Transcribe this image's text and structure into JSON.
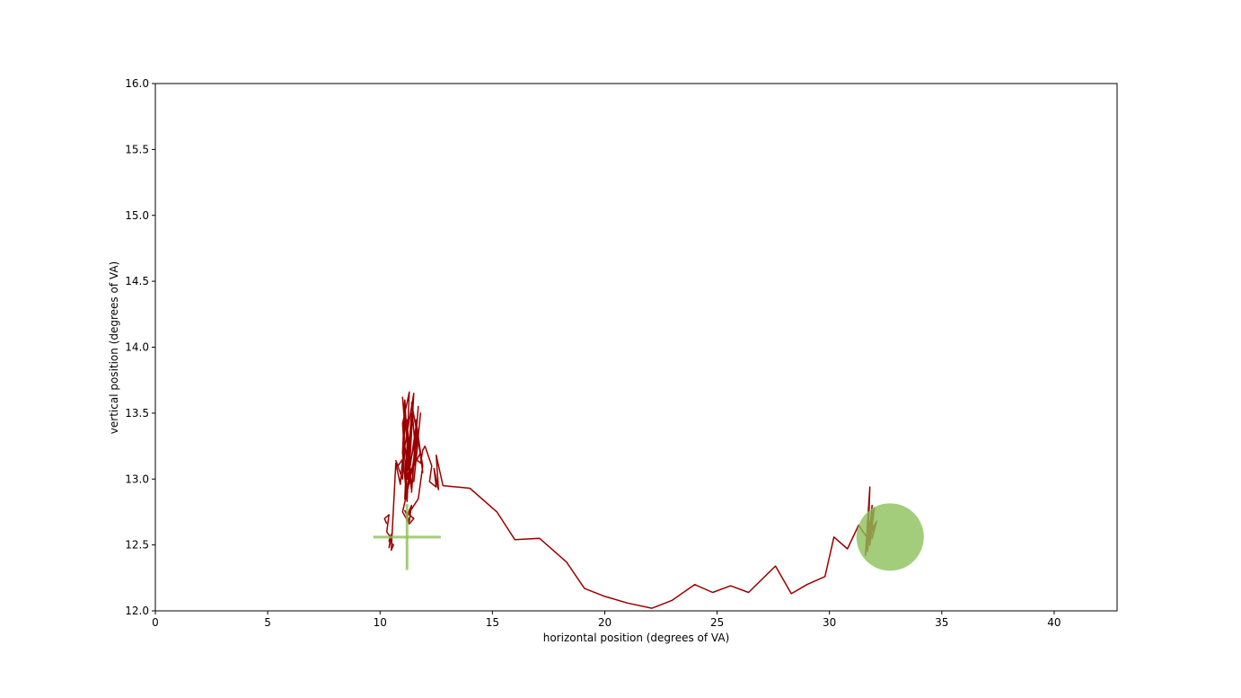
{
  "chart_data": {
    "type": "line",
    "title": "",
    "xlabel": "horizontal position (degrees of VA)",
    "ylabel": "vertical position (degrees of VA)",
    "xlim": [
      0,
      42.8
    ],
    "ylim": [
      12.0,
      16.0
    ],
    "xticks": [
      0,
      5,
      10,
      15,
      20,
      25,
      30,
      35,
      40
    ],
    "xtick_labels": [
      "0",
      "5",
      "10",
      "15",
      "20",
      "25",
      "30",
      "35",
      "40"
    ],
    "yticks": [
      12.0,
      12.5,
      13.0,
      13.5,
      14.0,
      14.5,
      15.0,
      15.5,
      16.0
    ],
    "ytick_labels": [
      "12.0",
      "12.5",
      "13.0",
      "13.5",
      "14.0",
      "14.5",
      "15.0",
      "15.5",
      "16.0"
    ],
    "grid": false,
    "colors": {
      "gaze_path": "#990000",
      "markers": "#8cbf5a"
    },
    "fixation_cross": {
      "x": 11.2,
      "y": 12.56,
      "half_width": 1.5,
      "half_height": 0.25
    },
    "target_circle": {
      "x": 32.7,
      "y": 12.56,
      "radius": 1.5
    },
    "series": [
      {
        "x": [
          10.3,
          10.2,
          10.4,
          10.3,
          10.5,
          10.4,
          10.5,
          10.4,
          10.6,
          10.5,
          10.7,
          10.9,
          11.0,
          10.8,
          10.7,
          11.0,
          11.1,
          11.0,
          11.2,
          11.1,
          11.3,
          11.2,
          11.0,
          11.3,
          11.1,
          11.4,
          11.2,
          11.0,
          11.1,
          11.3,
          11.2,
          11.4,
          11.1,
          11.5,
          11.3,
          11.6,
          11.4,
          11.7,
          11.5,
          11.8,
          11.6,
          11.9,
          11.7,
          11.5,
          11.8,
          11.6,
          11.4,
          11.9,
          11.7,
          11.2,
          11.4,
          11.3,
          11.1,
          11.5,
          11.3,
          11.0,
          11.6,
          11.4,
          11.7,
          11.5,
          11.2,
          11.6,
          11.8,
          11.9,
          12.0,
          12.3,
          12.2,
          12.5,
          12.4,
          12.6,
          12.5,
          12.8,
          14.0,
          15.2,
          16.0,
          17.1,
          18.3,
          19.1,
          20.0,
          21.0,
          22.1,
          23.0,
          24.0,
          24.8,
          25.6,
          26.4,
          27.6,
          28.3,
          29.0,
          29.8,
          30.2,
          30.8,
          31.3,
          31.7,
          31.6,
          31.8,
          31.7,
          31.9,
          31.8,
          32.0,
          31.7,
          31.9,
          31.8,
          32.1,
          31.9,
          32.0,
          31.8
        ],
        "y": [
          12.66,
          12.7,
          12.73,
          12.6,
          12.55,
          12.48,
          12.58,
          12.53,
          12.5,
          12.46,
          13.12,
          12.96,
          13.15,
          13.1,
          13.14,
          13.0,
          13.4,
          13.62,
          13.3,
          13.55,
          13.0,
          12.9,
          13.42,
          13.66,
          12.85,
          13.5,
          12.83,
          13.2,
          13.6,
          13.0,
          13.45,
          12.92,
          13.25,
          13.65,
          13.05,
          13.4,
          12.9,
          13.55,
          13.1,
          13.2,
          13.45,
          13.05,
          13.3,
          12.98,
          13.5,
          13.15,
          13.58,
          13.1,
          12.85,
          12.72,
          12.8,
          12.68,
          12.76,
          12.7,
          12.66,
          12.75,
          13.2,
          13.05,
          13.35,
          13.25,
          13.0,
          13.15,
          13.12,
          13.22,
          13.25,
          13.1,
          12.98,
          12.94,
          13.08,
          12.92,
          13.18,
          12.95,
          12.93,
          12.75,
          12.54,
          12.55,
          12.37,
          12.17,
          12.11,
          12.06,
          12.02,
          12.08,
          12.2,
          12.14,
          12.19,
          12.14,
          12.34,
          12.13,
          12.2,
          12.26,
          12.56,
          12.47,
          12.65,
          12.55,
          12.42,
          12.94,
          12.45,
          12.8,
          12.5,
          12.78,
          12.6,
          12.73,
          12.58,
          12.68,
          12.55,
          12.65,
          12.62
        ]
      }
    ]
  }
}
